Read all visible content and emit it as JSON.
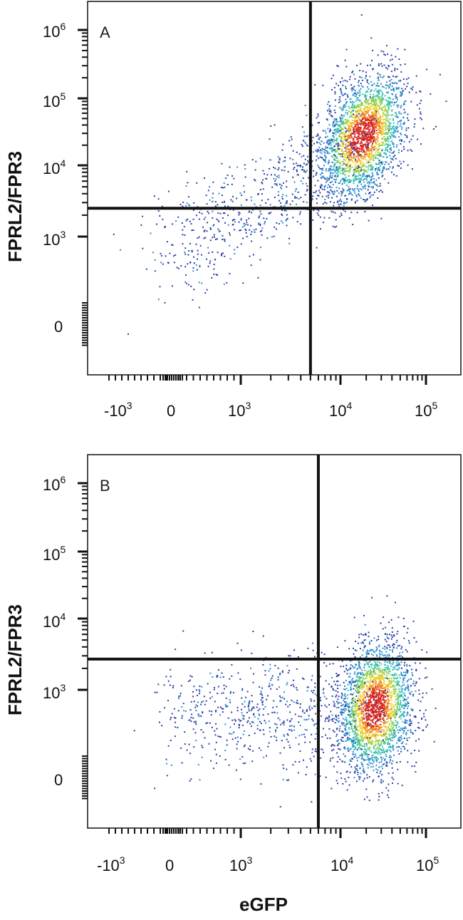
{
  "chart_data": [
    {
      "type": "scatter",
      "panel_label": "A",
      "xlabel": "",
      "ylabel": "FPRL2/FPR3",
      "x_scale": "biexponential",
      "y_scale": "biexponential",
      "x_ticks": [
        {
          "base": "-10",
          "exp": "3"
        },
        {
          "base": "0",
          "exp": ""
        },
        {
          "base": "10",
          "exp": "3"
        },
        {
          "base": "10",
          "exp": "4"
        },
        {
          "base": "10",
          "exp": "5"
        }
      ],
      "y_ticks": [
        {
          "base": "10",
          "exp": "6"
        },
        {
          "base": "10",
          "exp": "5"
        },
        {
          "base": "10",
          "exp": "4"
        },
        {
          "base": "10",
          "exp": "3"
        },
        {
          "base": "0",
          "exp": ""
        }
      ],
      "quadrant_gate": {
        "x": 5000,
        "y": 2500
      },
      "population_center": {
        "x": 18000,
        "y": 28000
      },
      "color_scale": [
        "#2b3fa8",
        "#2f8fd0",
        "#35c2b0",
        "#8fd14f",
        "#f2d22e",
        "#f28a1e",
        "#d7261e"
      ]
    },
    {
      "type": "scatter",
      "panel_label": "B",
      "xlabel": "eGFP",
      "ylabel": "FPRL2/FPR3",
      "x_scale": "biexponential",
      "y_scale": "biexponential",
      "x_ticks": [
        {
          "base": "-10",
          "exp": "3"
        },
        {
          "base": "0",
          "exp": ""
        },
        {
          "base": "10",
          "exp": "3"
        },
        {
          "base": "10",
          "exp": "4"
        },
        {
          "base": "10",
          "exp": "5"
        }
      ],
      "y_ticks": [
        {
          "base": "10",
          "exp": "6"
        },
        {
          "base": "10",
          "exp": "5"
        },
        {
          "base": "10",
          "exp": "4"
        },
        {
          "base": "10",
          "exp": "3"
        },
        {
          "base": "0",
          "exp": ""
        }
      ],
      "quadrant_gate": {
        "x": 6000,
        "y": 2700
      },
      "population_center": {
        "x": 25000,
        "y": 800
      },
      "color_scale": [
        "#2b3fa8",
        "#2f8fd0",
        "#35c2b0",
        "#8fd14f",
        "#f2d22e",
        "#f28a1e",
        "#d7261e"
      ]
    }
  ]
}
